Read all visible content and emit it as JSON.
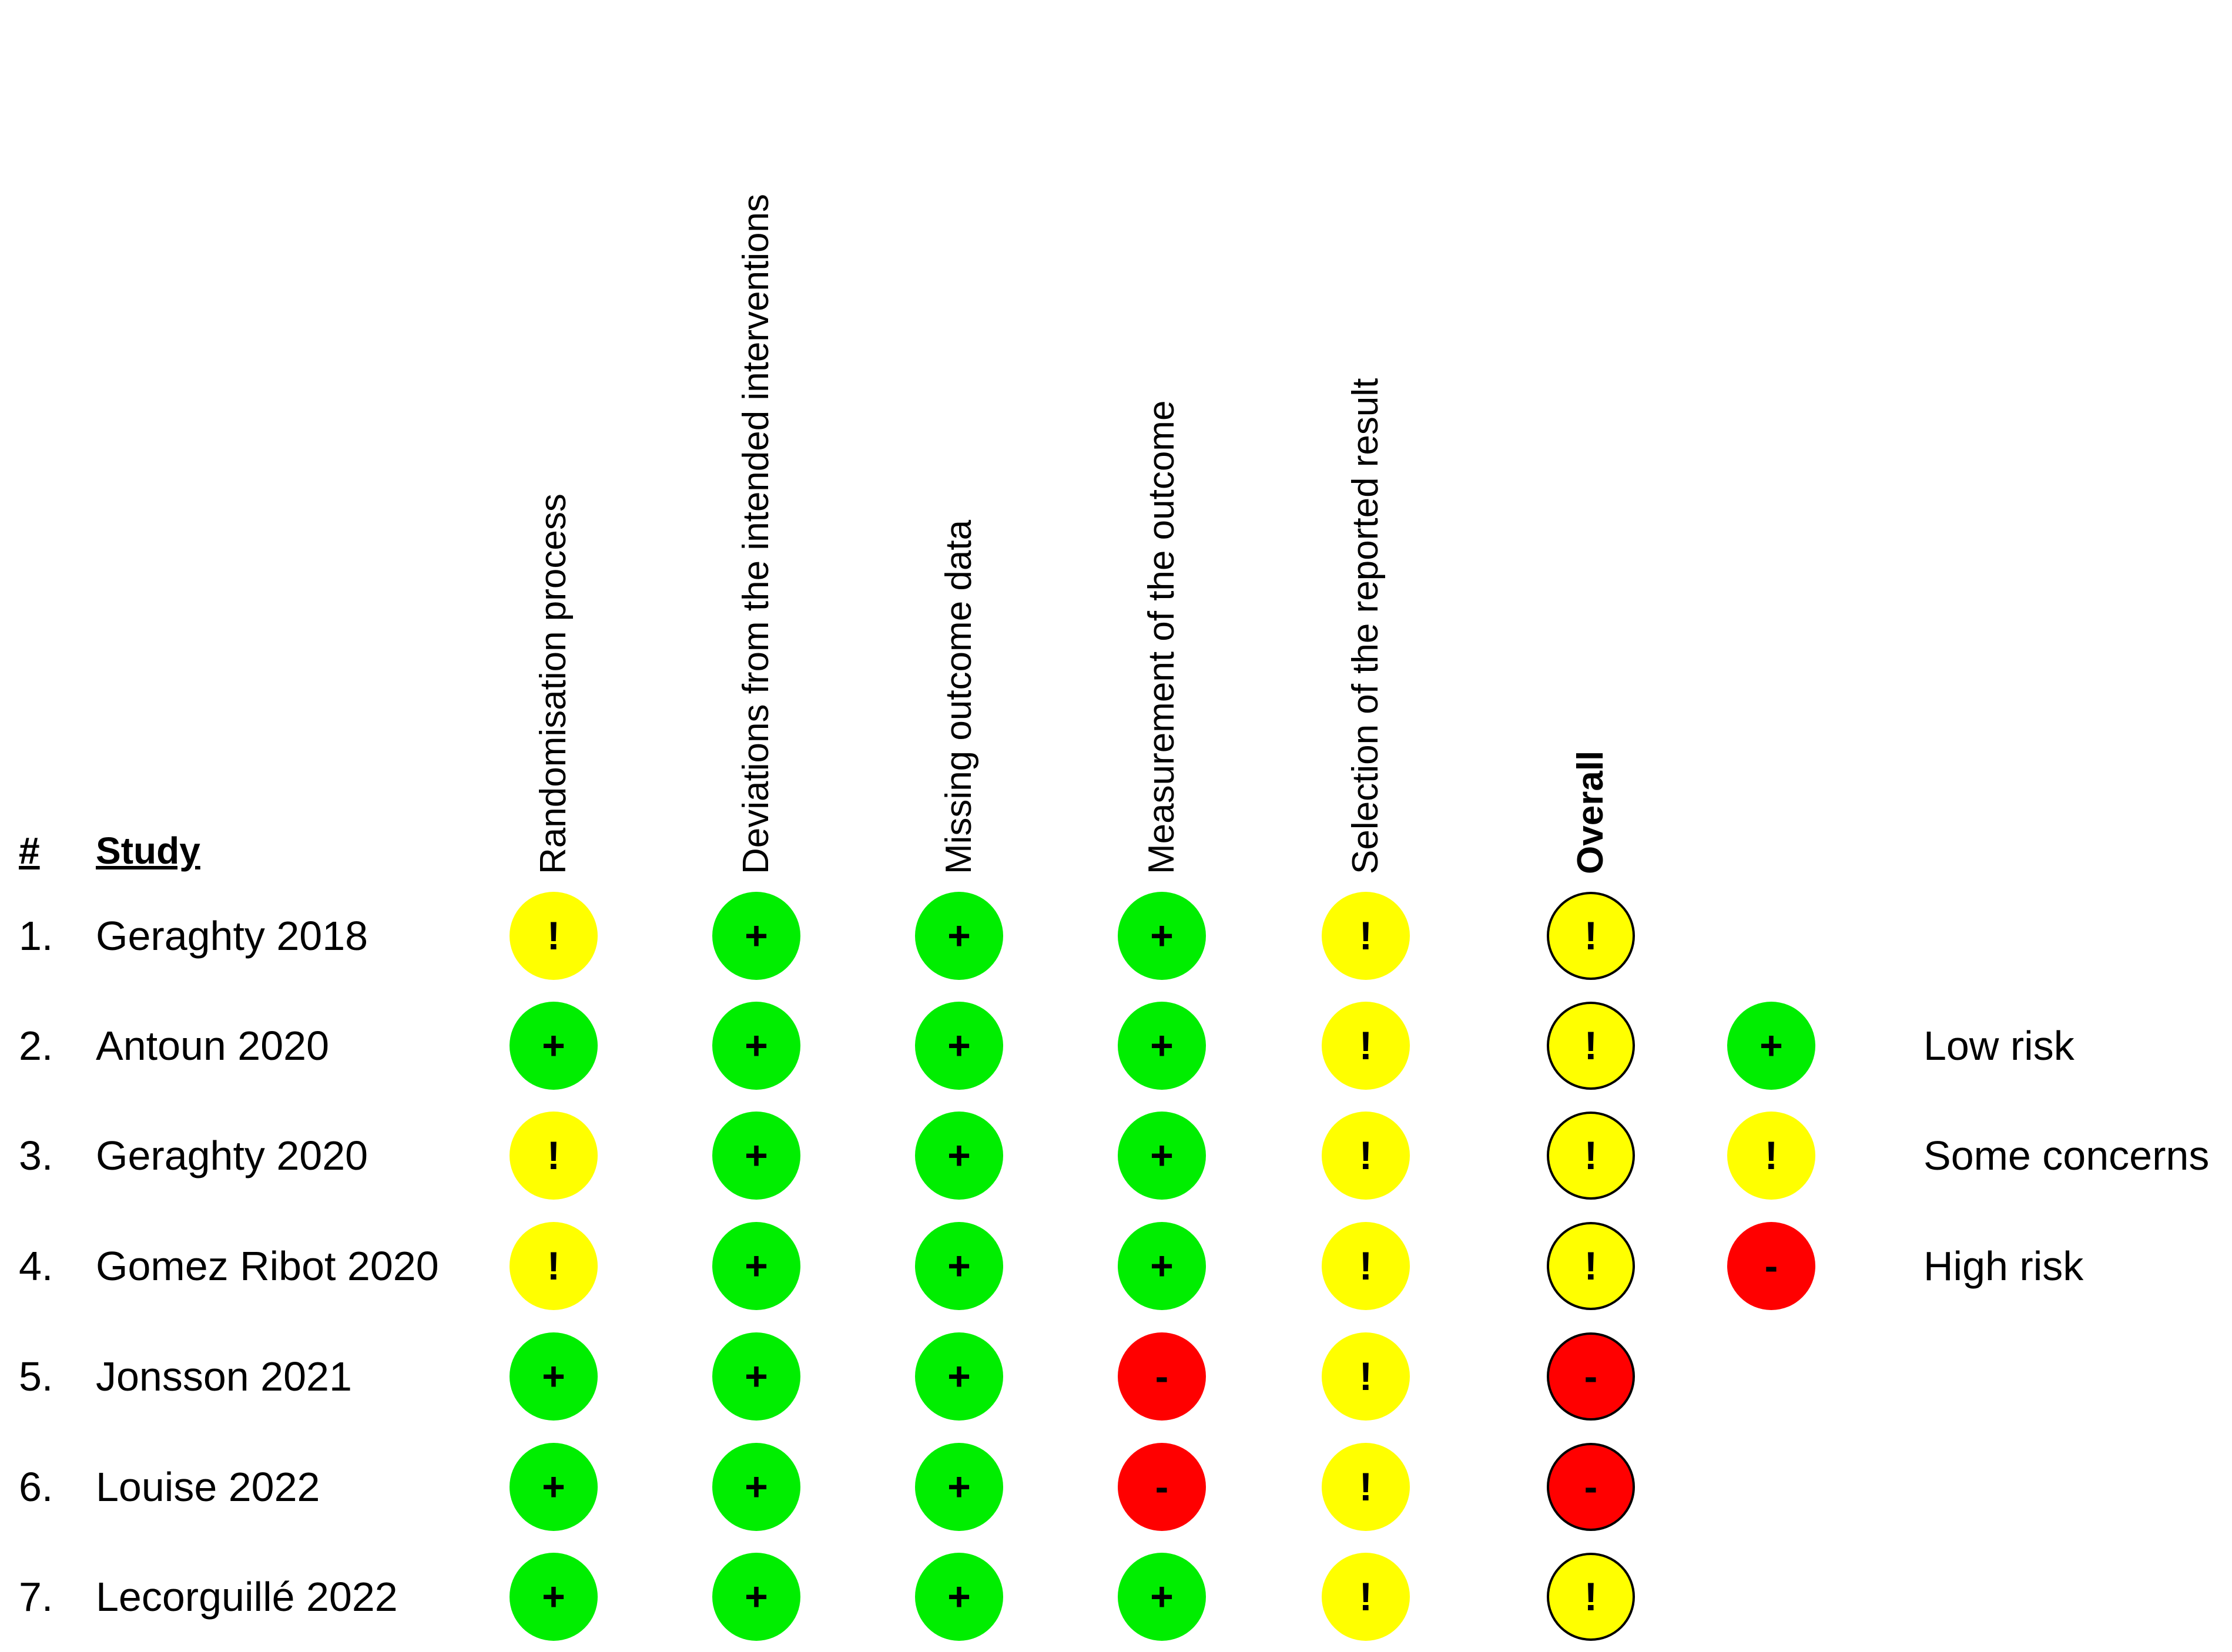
{
  "header": {
    "num_label": "#",
    "study_label": "Study"
  },
  "domains": [
    {
      "label": "Randomisation process",
      "bold": false
    },
    {
      "label": "Deviations from the intended interventions",
      "bold": false
    },
    {
      "label": "Missing outcome data",
      "bold": false
    },
    {
      "label": "Measurement of the outcome",
      "bold": false
    },
    {
      "label": "Selection of the reported result",
      "bold": false
    },
    {
      "label": "Overall",
      "bold": true
    }
  ],
  "judgements": {
    "low": {
      "symbol": "+",
      "label": "Low risk",
      "color": "#00ee00"
    },
    "some": {
      "symbol": "!",
      "label": "Some concerns",
      "color": "#ffff00"
    },
    "high": {
      "symbol": "-",
      "label": "High risk",
      "color": "#ff0000"
    }
  },
  "legend_order": [
    "low",
    "some",
    "high"
  ],
  "studies": [
    {
      "num": "1.",
      "name": "Geraghty 2018",
      "ratings": [
        "some",
        "low",
        "low",
        "low",
        "some",
        "some"
      ]
    },
    {
      "num": "2.",
      "name": "Antoun 2020",
      "ratings": [
        "low",
        "low",
        "low",
        "low",
        "some",
        "some"
      ]
    },
    {
      "num": "3.",
      "name": "Geraghty 2020",
      "ratings": [
        "some",
        "low",
        "low",
        "low",
        "some",
        "some"
      ]
    },
    {
      "num": "4.",
      "name": "Gomez Ribot 2020",
      "ratings": [
        "some",
        "low",
        "low",
        "low",
        "some",
        "some"
      ]
    },
    {
      "num": "5.",
      "name": "Jonsson 2021",
      "ratings": [
        "low",
        "low",
        "low",
        "high",
        "some",
        "high"
      ]
    },
    {
      "num": "6.",
      "name": "Louise 2022",
      "ratings": [
        "low",
        "low",
        "low",
        "high",
        "some",
        "high"
      ]
    },
    {
      "num": "7.",
      "name": "Lecorguillé 2022",
      "ratings": [
        "low",
        "low",
        "low",
        "low",
        "some",
        "some"
      ]
    }
  ]
}
